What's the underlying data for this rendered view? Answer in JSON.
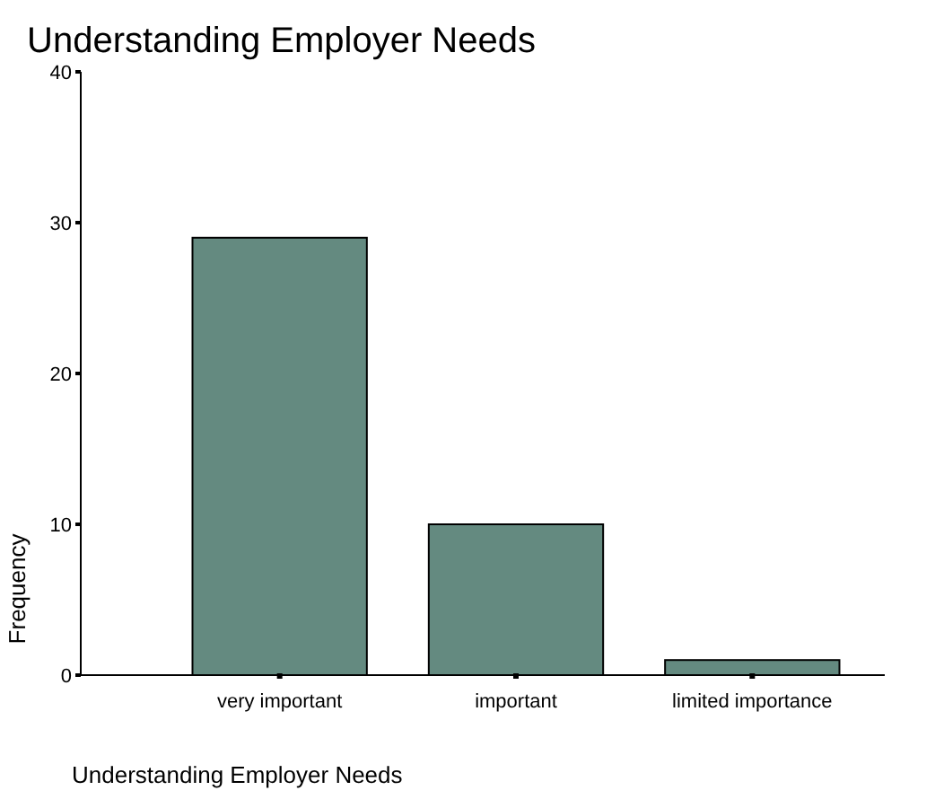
{
  "chart_data": {
    "type": "bar",
    "title": "Understanding Employer Needs",
    "xlabel": "Understanding Employer Needs",
    "ylabel": "Frequency",
    "categories": [
      "very important",
      "important",
      "limited importance"
    ],
    "values": [
      29,
      10,
      1
    ],
    "color": "#648a80",
    "ylim": [
      0,
      40
    ],
    "yticks": [
      0,
      10,
      20,
      30,
      40
    ],
    "grid": false
  }
}
